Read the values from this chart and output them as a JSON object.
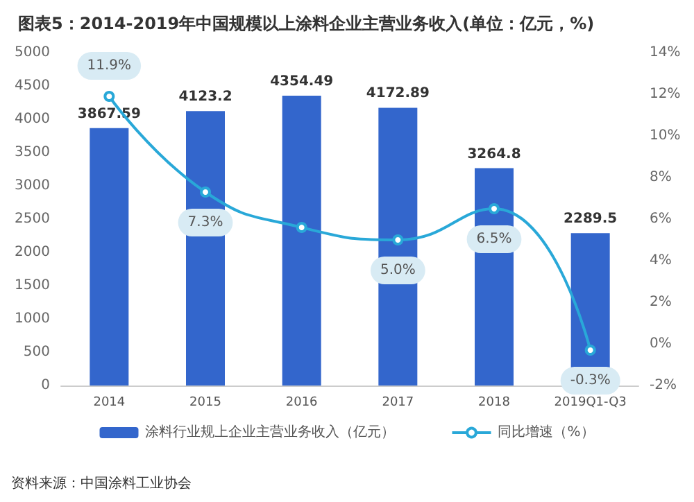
{
  "chart_data": {
    "type": "bar",
    "title": "图表5：2014-2019年中国规模以上涂料企业主营业务收入(单位：亿元，%)",
    "categories": [
      "2014",
      "2015",
      "2016",
      "2017",
      "2018",
      "2019Q1-Q3"
    ],
    "series": [
      {
        "name": "涂料行业规上企业主营业务收入（亿元）",
        "color": "#3366cc",
        "values": [
          3867.59,
          4123.2,
          4354.49,
          4172.89,
          3264.8,
          2289.5
        ],
        "data_labels": true
      },
      {
        "name": "同比增速（%）",
        "type": "line",
        "axis": "y2",
        "color": "#29a8d8",
        "values": [
          11.9,
          7.3,
          5.6,
          5.0,
          6.5,
          -0.3
        ],
        "value_labels": [
          "11.9%",
          "7.3%",
          null,
          "5.0%",
          "6.5%",
          "-0.3%"
        ],
        "marker": "circle"
      }
    ],
    "ylim": [
      0,
      5000
    ],
    "yticks": [
      0,
      500,
      1000,
      1500,
      2000,
      2500,
      3000,
      3500,
      4000,
      4500,
      5000
    ],
    "y2lim": [
      -2,
      14
    ],
    "y2ticks": [
      {
        "value": -2,
        "label": "-2%"
      },
      {
        "value": 0,
        "label": "0%"
      },
      {
        "value": 2,
        "label": "2%"
      },
      {
        "value": 4,
        "label": "4%"
      },
      {
        "value": 6,
        "label": "6%"
      },
      {
        "value": 8,
        "label": "8%"
      },
      {
        "value": 10,
        "label": "10%"
      },
      {
        "value": 12,
        "label": "12%"
      },
      {
        "value": 14,
        "label": "14%"
      }
    ],
    "grid": false,
    "legend": "bottom",
    "annotations": [
      "资料来源：中国涂料工业协会"
    ]
  }
}
